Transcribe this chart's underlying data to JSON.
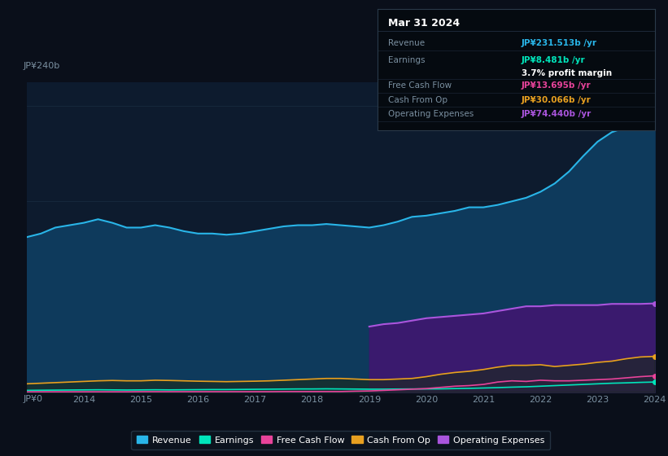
{
  "bg_color": "#0a0f1a",
  "plot_bg_color": "#0d1b2e",
  "years": [
    2013,
    2013.25,
    2013.5,
    2013.75,
    2014,
    2014.25,
    2014.5,
    2014.75,
    2015,
    2015.25,
    2015.5,
    2015.75,
    2016,
    2016.25,
    2016.5,
    2016.75,
    2017,
    2017.25,
    2017.5,
    2017.75,
    2018,
    2018.25,
    2018.5,
    2018.75,
    2019,
    2019.25,
    2019.5,
    2019.75,
    2020,
    2020.25,
    2020.5,
    2020.75,
    2021,
    2021.25,
    2021.5,
    2021.75,
    2022,
    2022.25,
    2022.5,
    2022.75,
    2023,
    2023.25,
    2023.5,
    2023.75,
    2024
  ],
  "revenue": [
    130,
    133,
    138,
    140,
    142,
    145,
    142,
    138,
    138,
    140,
    138,
    135,
    133,
    133,
    132,
    133,
    135,
    137,
    139,
    140,
    140,
    141,
    140,
    139,
    138,
    140,
    143,
    147,
    148,
    150,
    152,
    155,
    155,
    157,
    160,
    163,
    168,
    175,
    185,
    198,
    210,
    218,
    222,
    228,
    231.5
  ],
  "earnings": [
    1.5,
    1.6,
    1.7,
    1.8,
    1.9,
    2.0,
    1.9,
    1.8,
    1.9,
    2.0,
    1.9,
    2.0,
    2.1,
    2.2,
    2.2,
    2.3,
    2.4,
    2.5,
    2.6,
    2.7,
    2.7,
    2.8,
    2.7,
    2.6,
    2.5,
    2.5,
    2.6,
    2.7,
    2.7,
    2.8,
    3.0,
    3.2,
    3.5,
    3.8,
    4.2,
    4.5,
    5.0,
    5.5,
    6.0,
    6.5,
    7.0,
    7.5,
    7.8,
    8.2,
    8.5
  ],
  "free_cash_flow": [
    0.3,
    0.3,
    0.3,
    0.3,
    0.3,
    0.3,
    0.3,
    0.3,
    0.4,
    0.4,
    0.4,
    0.4,
    0.4,
    0.4,
    0.4,
    0.4,
    0.4,
    0.4,
    0.5,
    0.5,
    0.5,
    0.5,
    0.5,
    0.8,
    1.0,
    1.5,
    2.0,
    2.5,
    3.0,
    4.0,
    5.0,
    5.5,
    6.5,
    8.5,
    9.5,
    9.0,
    10.0,
    9.5,
    9.5,
    10.0,
    10.5,
    11.0,
    12.0,
    13.0,
    13.7
  ],
  "cash_from_op": [
    7,
    7.5,
    8,
    8.5,
    9,
    9.5,
    9.8,
    9.5,
    9.5,
    10,
    9.8,
    9.5,
    9.2,
    9.0,
    8.8,
    9.0,
    9.2,
    9.5,
    10.0,
    10.5,
    11.0,
    11.5,
    11.5,
    11.0,
    10.5,
    10.5,
    11.0,
    11.5,
    13.0,
    15.0,
    16.5,
    17.5,
    19.0,
    21.0,
    22.5,
    22.5,
    23.0,
    21.5,
    22.5,
    23.5,
    25.0,
    26.0,
    28.0,
    29.5,
    30.0
  ],
  "operating_expenses": [
    0,
    0,
    0,
    0,
    0,
    0,
    0,
    0,
    0,
    0,
    0,
    0,
    0,
    0,
    0,
    0,
    0,
    0,
    0,
    0,
    0,
    0,
    0,
    0,
    55,
    57,
    58,
    60,
    62,
    63,
    64,
    65,
    66,
    68,
    70,
    72,
    72,
    73,
    73,
    73,
    73,
    74,
    74,
    74,
    74.4
  ],
  "colors": {
    "revenue": "#29b5e8",
    "earnings": "#00e5bb",
    "free_cash_flow": "#e8439a",
    "cash_from_op": "#e8a020",
    "operating_expenses": "#aa55dd",
    "revenue_fill": "#0e3a5c",
    "op_exp_fill": "#3a1a6e",
    "grid": "#1a2e42",
    "text": "#7a8fa0",
    "legend_bg": "#0d1520",
    "legend_border": "#2a3a4a"
  },
  "ylim": [
    0,
    260
  ],
  "ytick_val_top": "JP¥240b",
  "ytick_val_zero": "JP¥0",
  "xtick_labels": [
    "2014",
    "2015",
    "2016",
    "2017",
    "2018",
    "2019",
    "2020",
    "2021",
    "2022",
    "2023",
    "2024"
  ],
  "xtick_positions": [
    2014,
    2015,
    2016,
    2017,
    2018,
    2019,
    2020,
    2021,
    2022,
    2023,
    2024
  ],
  "legend_items": [
    {
      "label": "Revenue",
      "color": "#29b5e8"
    },
    {
      "label": "Earnings",
      "color": "#00e5bb"
    },
    {
      "label": "Free Cash Flow",
      "color": "#e8439a"
    },
    {
      "label": "Cash From Op",
      "color": "#e8a020"
    },
    {
      "label": "Operating Expenses",
      "color": "#aa55dd"
    }
  ],
  "tooltip": {
    "date": "Mar 31 2024",
    "rows": [
      {
        "label": "Revenue",
        "value": "JP¥231.513b /yr",
        "color": "#29b5e8",
        "sub": null
      },
      {
        "label": "Earnings",
        "value": "JP¥8.481b /yr",
        "color": "#00e5bb",
        "sub": "3.7% profit margin"
      },
      {
        "label": "Free Cash Flow",
        "value": "JP¥13.695b /yr",
        "color": "#e8439a",
        "sub": null
      },
      {
        "label": "Cash From Op",
        "value": "JP¥30.066b /yr",
        "color": "#e8a020",
        "sub": null
      },
      {
        "label": "Operating Expenses",
        "value": "JP¥74.440b /yr",
        "color": "#aa55dd",
        "sub": null
      }
    ]
  }
}
